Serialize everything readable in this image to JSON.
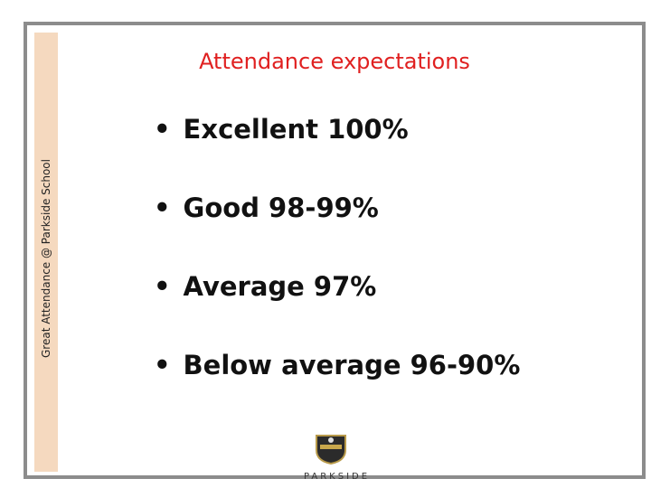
{
  "title": "Attendance expectations",
  "sidebar": "Great Attendance @ Parkside School",
  "bullets": [
    "Excellent 100%",
    "Good 98-99%",
    "Average 97%",
    "Below average 96-90%"
  ],
  "logo": "PARKSIDE"
}
